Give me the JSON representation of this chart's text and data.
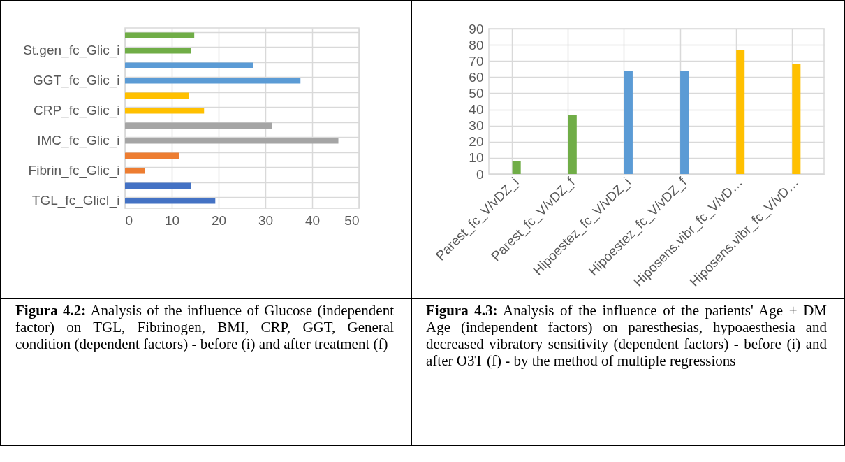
{
  "chart_data": [
    {
      "type": "bar",
      "orientation": "horizontal",
      "categories": [
        null,
        "St.gen_fc_Glic_i",
        null,
        "GGT_fc_Glic_i",
        null,
        "CRP_fc_Glic_i",
        null,
        "IMC_fc_Glic_i",
        null,
        "Fibrin_fc_Glic_i",
        null,
        "TGL_fc_GlicI_i"
      ],
      "values": [
        14.8,
        14.1,
        27.4,
        37.5,
        13.7,
        16.9,
        31.4,
        45.6,
        11.6,
        4.2,
        14.1,
        19.3
      ],
      "colors": [
        "#70ad47",
        "#70ad47",
        "#5b9bd5",
        "#5b9bd5",
        "#ffc000",
        "#ffc000",
        "#a5a5a5",
        "#a5a5a5",
        "#ed7d31",
        "#ed7d31",
        "#4472c4",
        "#4472c4"
      ],
      "xlim": [
        0,
        50
      ],
      "xticks": [
        0,
        10,
        20,
        30,
        40,
        50
      ],
      "grid": true,
      "legend": false,
      "annotations": [
        "Figura 4.2: Analysis of the influence of Glucose (independent factor) on TGL, Fibrinogen, BMI, CRP, GGT, General condition (dependent factors) - before (i) and after treatment (f)"
      ]
    },
    {
      "type": "bar",
      "categories": [
        "Parest_fc_V/vDZ_i",
        "Parest_fc_V/vDZ_f",
        "Hipoestez_fc_V/vDZ_i",
        "Hipoestez_fc_V/vDZ_f",
        "Hiposens.vibr_fc_V/vD…",
        "Hiposens.vibr_fc_V/vD…"
      ],
      "values": [
        8.1,
        36.3,
        63.9,
        63.9,
        76.7,
        68.1
      ],
      "colors": [
        "#70ad47",
        "#70ad47",
        "#5b9bd5",
        "#5b9bd5",
        "#ffc000",
        "#ffc000"
      ],
      "ylim": [
        0,
        90
      ],
      "yticks": [
        0,
        10,
        20,
        30,
        40,
        50,
        60,
        70,
        80,
        90
      ],
      "grid": true,
      "legend": false,
      "annotations": [
        "Figura 4.3: Analysis of the influence of the patients' Age + DM Age (independent factors) on paresthesias, hypoaesthesia and decreased vibratory sensitivity (dependent factors) - before (i) and after O3T (f) - by the method of multiple regressions"
      ]
    }
  ]
}
